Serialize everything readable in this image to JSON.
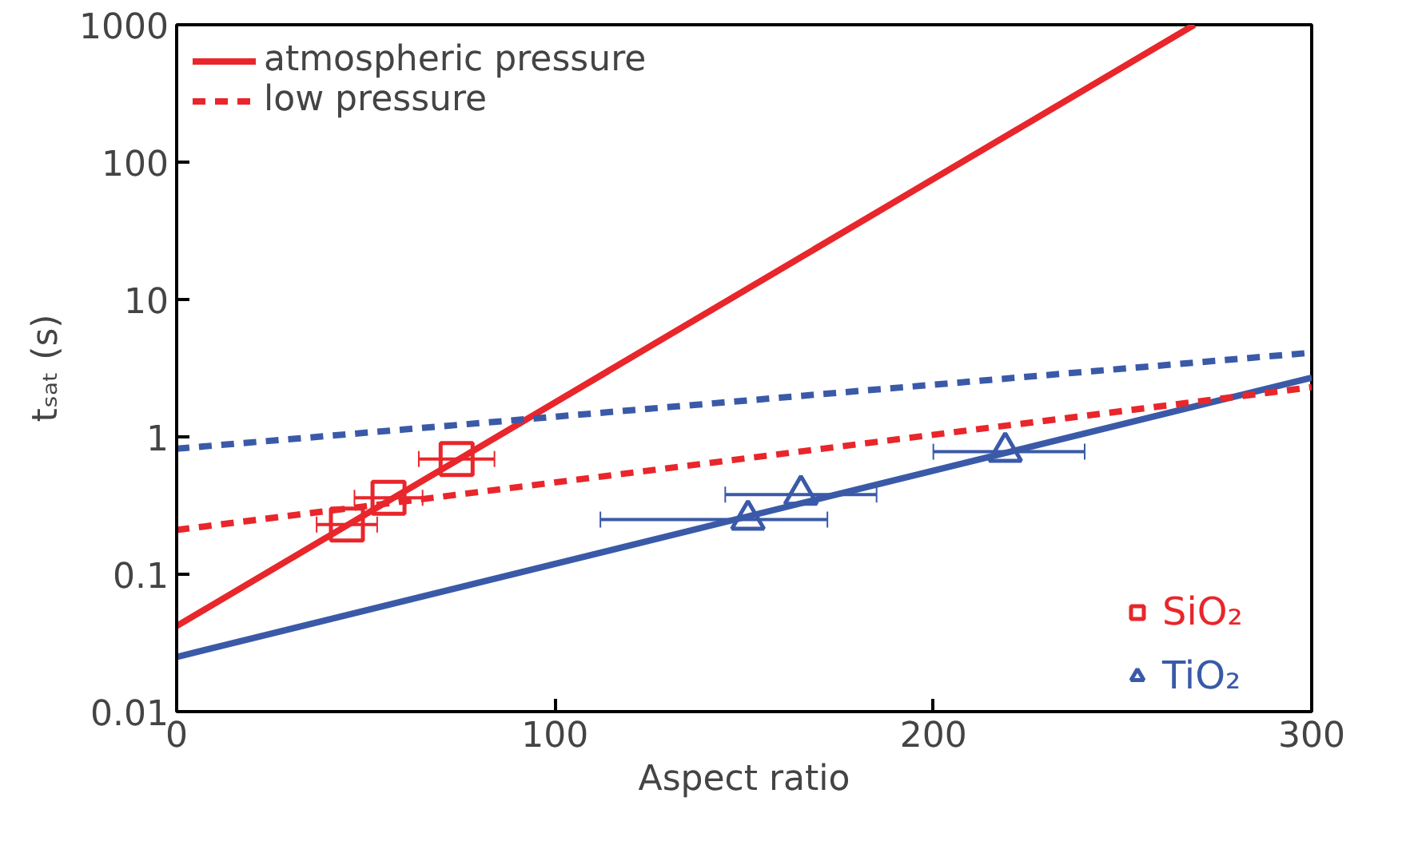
{
  "chart_data": {
    "type": "line",
    "xlabel": "Aspect ratio",
    "ylabel": "tₛₐₜ (s)",
    "log": "y",
    "xlim": [
      0,
      300
    ],
    "ylim": [
      0.01,
      1000
    ],
    "xticks": [
      0,
      100,
      200,
      300
    ],
    "yticks": [
      0.01,
      0.1,
      1,
      10,
      100,
      1000
    ],
    "grid": false,
    "legend": "top left",
    "series": [
      {
        "name": "atmospheric pressure",
        "line_style": "solid",
        "color": "#e8262b",
        "x": [
          0,
          269
        ],
        "values": [
          0.042,
          1000
        ]
      },
      {
        "line_style": "solid",
        "color": "#3a5aa8",
        "x": [
          0,
          300
        ],
        "values": [
          0.025,
          2.7
        ]
      },
      {
        "name": "low pressure",
        "line_style": "dashed",
        "color": "#e8262b",
        "x": [
          0,
          300
        ],
        "values": [
          0.21,
          2.3
        ]
      },
      {
        "line_style": "dashed",
        "color": "#3a5aa8",
        "x": [
          0,
          300
        ],
        "values": [
          0.82,
          4.1
        ]
      },
      {
        "name": "SiO₂",
        "type": "scatter",
        "marker": "square",
        "color": "#e8262b",
        "x": [
          45,
          56,
          74
        ],
        "values": [
          0.23,
          0.36,
          0.69
        ],
        "xerrors": [
          8,
          9,
          10
        ]
      },
      {
        "name": "TiO₂",
        "type": "scatter",
        "marker": "triangle",
        "color": "#3a5aa8",
        "x": [
          151,
          165,
          219
        ],
        "values": [
          0.25,
          0.38,
          0.78
        ],
        "xerrors": [
          [
            112,
            172
          ],
          [
            145,
            185
          ],
          [
            200,
            240
          ]
        ]
      }
    ]
  }
}
